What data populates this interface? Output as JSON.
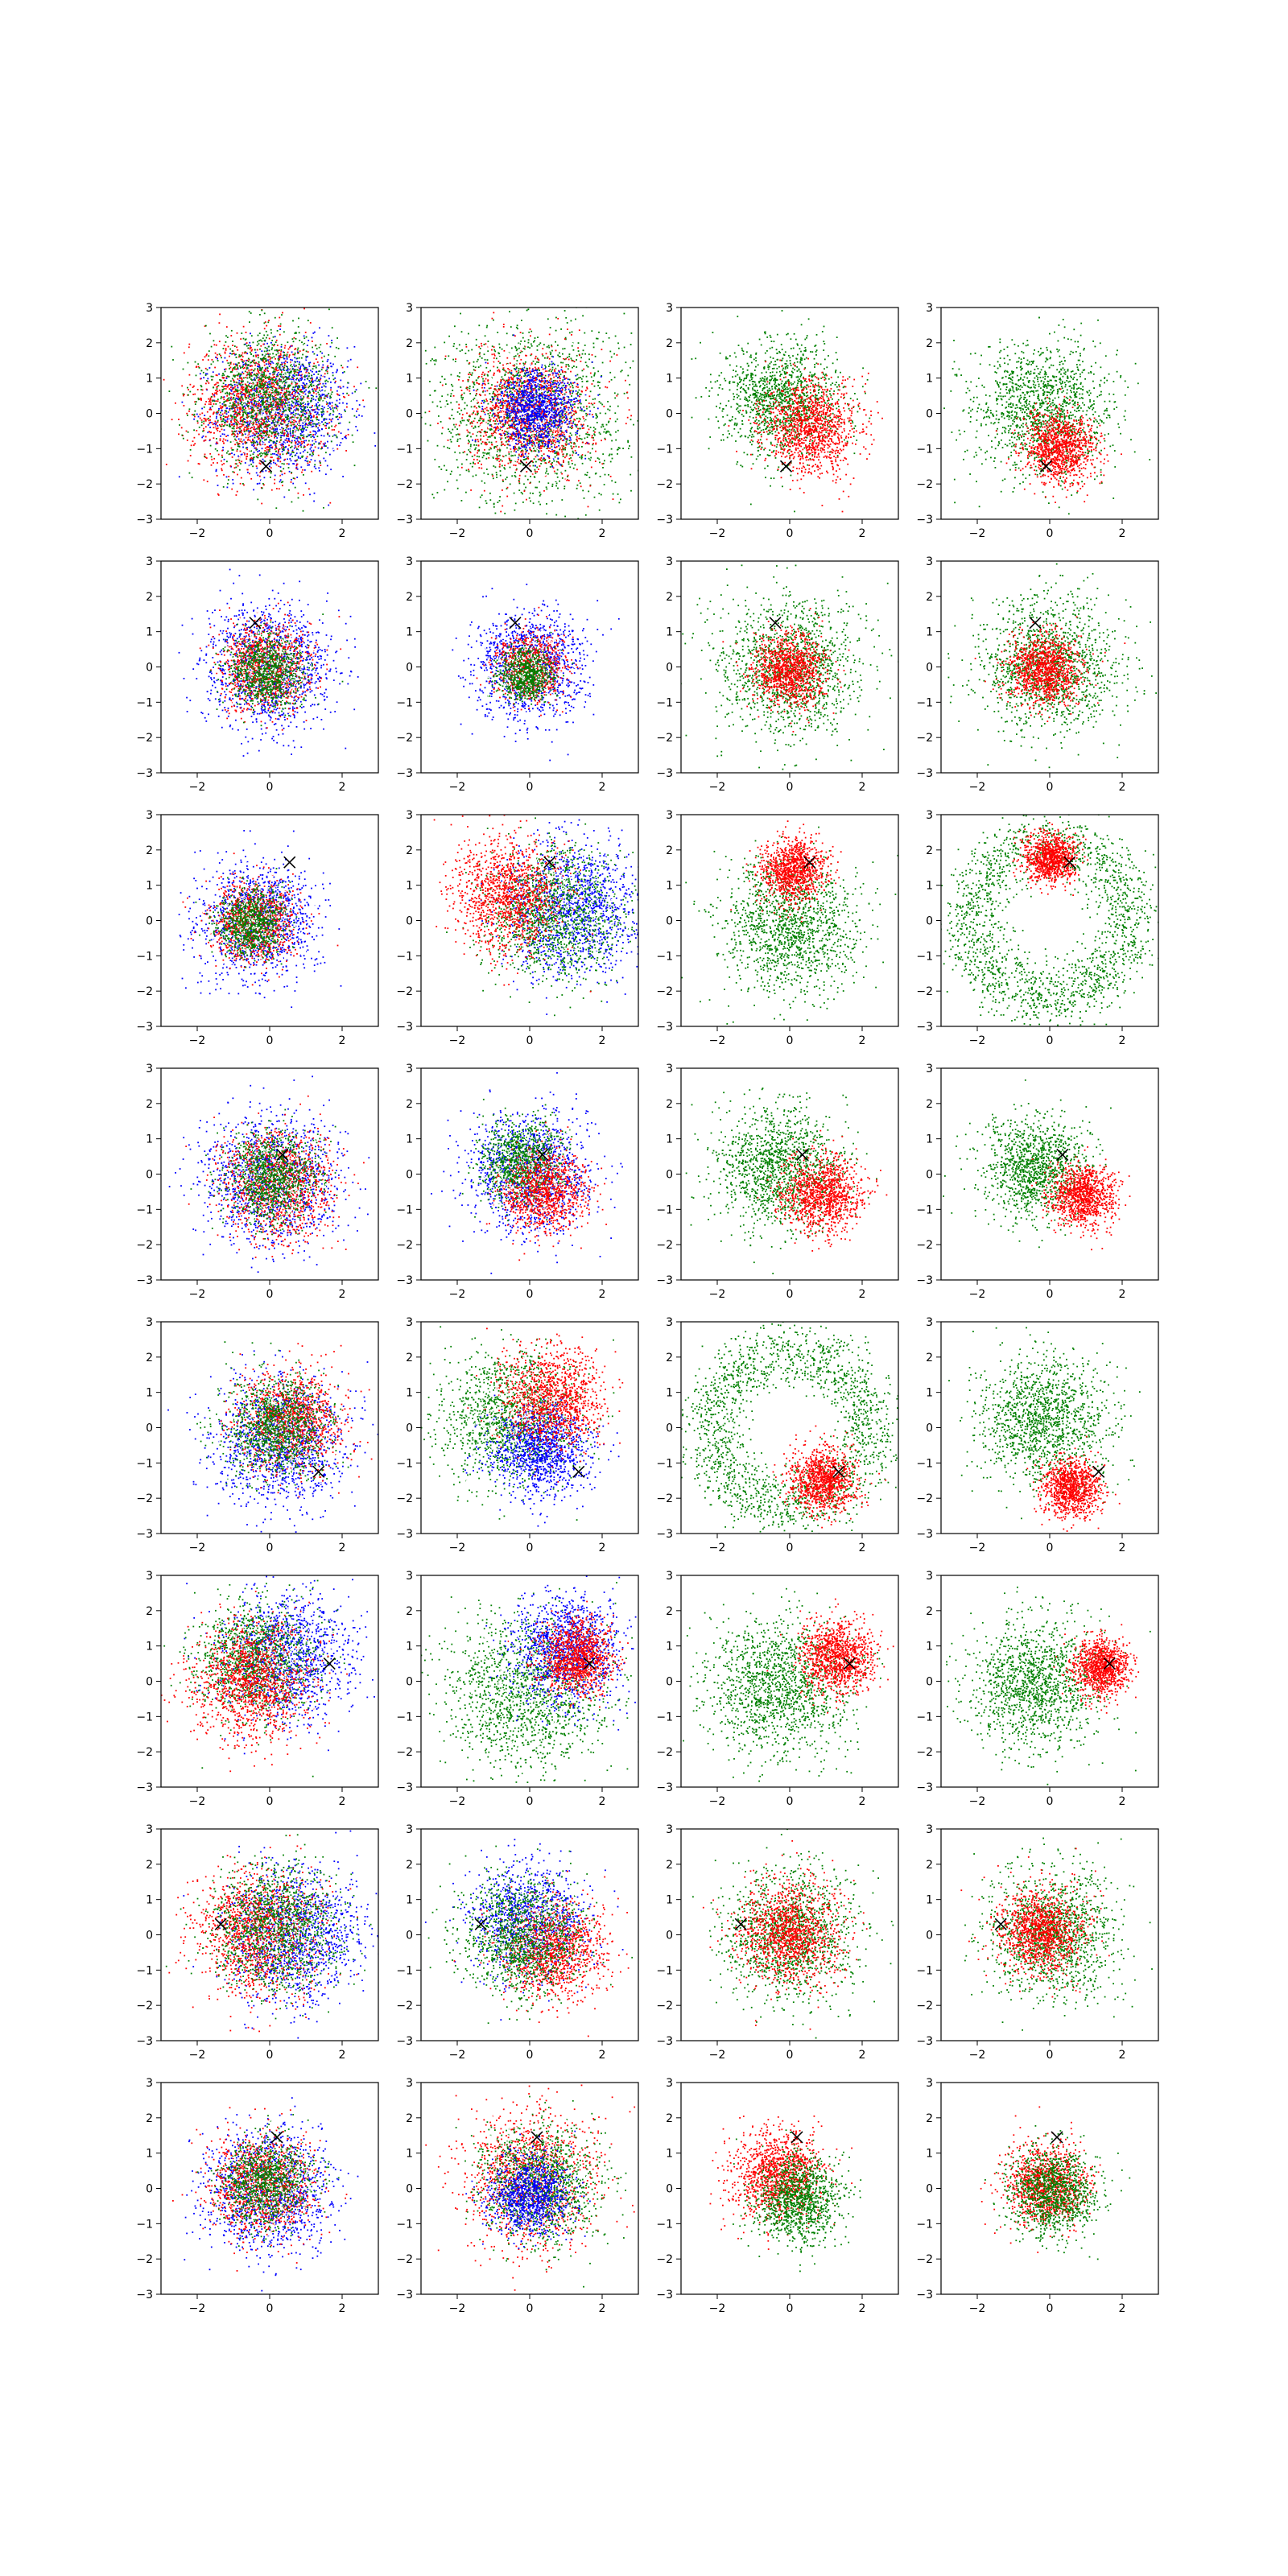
{
  "figure": {
    "rows": 8,
    "cols": 4
  },
  "chart_data": {
    "type": "scatter",
    "layout": "8x4 grid of scatter panels",
    "xlim": [
      -3,
      3
    ],
    "ylim": [
      -3,
      3
    ],
    "x_ticks": [
      -2,
      0,
      2
    ],
    "y_ticks": [
      -3,
      -2,
      -1,
      0,
      1,
      2,
      3
    ],
    "x_tick_labels": [
      "−2",
      "0",
      "2"
    ],
    "y_tick_labels": [
      "−3",
      "−2",
      "−1",
      "0",
      "1",
      "2",
      "3"
    ],
    "grid": false,
    "legend": "none",
    "series_colors": {
      "red": "#ff0000",
      "green": "#008000",
      "blue": "#0000ff",
      "white": "#ffffff",
      "marker": "#000000"
    },
    "marker": "x (black cross)",
    "rows": [
      {
        "marker": [
          -0.1,
          -1.5
        ],
        "panels": [
          {
            "clusters": [
              {
                "color": "blue",
                "cx": 0.4,
                "cy": 0.1,
                "s": 0.9
              },
              {
                "color": "red",
                "cx": -0.3,
                "cy": 0.2,
                "s": 0.95
              },
              {
                "color": "green",
                "cx": 0.0,
                "cy": 0.4,
                "s": 0.9
              }
            ],
            "mix": true
          },
          {
            "clusters": [
              {
                "color": "green",
                "cx": 0.0,
                "cy": 0.0,
                "s": 1.3
              },
              {
                "color": "red",
                "cx": 0.0,
                "cy": 0.0,
                "s": 0.85
              },
              {
                "color": "blue",
                "cx": 0.2,
                "cy": 0.1,
                "s": 0.55
              }
            ],
            "mix": true
          },
          {
            "clusters": [
              {
                "color": "green",
                "cx": -0.2,
                "cy": 0.4,
                "s": 0.8
              },
              {
                "color": "red",
                "cx": 0.6,
                "cy": -0.4,
                "s": 0.65
              }
            ]
          },
          {
            "clusters": [
              {
                "color": "green",
                "cx": -0.2,
                "cy": 0.1,
                "s": 0.95
              },
              {
                "color": "red",
                "cx": 0.3,
                "cy": -1.0,
                "s": 0.5
              }
            ]
          }
        ]
      },
      {
        "marker": [
          -0.4,
          1.25
        ],
        "panels": [
          {
            "clusters": [
              {
                "color": "blue",
                "cx": 0.0,
                "cy": 0.0,
                "s": 0.85
              },
              {
                "color": "red",
                "cx": -0.1,
                "cy": 0.0,
                "s": 0.6
              },
              {
                "color": "green",
                "cx": -0.1,
                "cy": -0.1,
                "s": 0.5
              }
            ],
            "mix": true
          },
          {
            "clusters": [
              {
                "color": "blue",
                "cx": 0.0,
                "cy": 0.0,
                "s": 0.75
              },
              {
                "color": "red",
                "cx": 0.0,
                "cy": 0.0,
                "s": 0.45
              },
              {
                "color": "green",
                "cx": -0.1,
                "cy": -0.2,
                "s": 0.35
              }
            ],
            "mix": true
          },
          {
            "clusters": [
              {
                "color": "green",
                "cx": 0.0,
                "cy": 0.0,
                "s": 0.95
              },
              {
                "color": "red",
                "cx": 0.0,
                "cy": -0.1,
                "s": 0.5
              }
            ]
          },
          {
            "clusters": [
              {
                "color": "green",
                "cx": 0.0,
                "cy": 0.0,
                "s": 0.95
              },
              {
                "color": "red",
                "cx": -0.1,
                "cy": -0.1,
                "s": 0.5
              }
            ]
          }
        ]
      },
      {
        "marker": [
          0.55,
          1.65
        ],
        "panels": [
          {
            "clusters": [
              {
                "color": "blue",
                "cx": -0.3,
                "cy": 0.0,
                "s": 0.8
              },
              {
                "color": "red",
                "cx": -0.4,
                "cy": 0.0,
                "s": 0.55
              },
              {
                "color": "green",
                "cx": -0.5,
                "cy": -0.1,
                "s": 0.45
              }
            ],
            "mix": true
          },
          {
            "clusters": [
              {
                "color": "blue",
                "cx": 1.2,
                "cy": 0.4,
                "s": 0.9
              },
              {
                "color": "green",
                "cx": 0.7,
                "cy": 0.2,
                "s": 0.9
              },
              {
                "color": "red",
                "cx": -0.6,
                "cy": 0.7,
                "s": 0.75
              }
            ],
            "mix": true
          },
          {
            "clusters": [
              {
                "color": "green",
                "cx": 0.0,
                "cy": -0.2,
                "s": 0.95
              },
              {
                "color": "red",
                "cx": 0.1,
                "cy": 1.4,
                "s": 0.45
              }
            ]
          },
          {
            "ring": {
              "color": "green",
              "r": 2.2,
              "w": 0.45
            },
            "clusters": [
              {
                "color": "red",
                "cx": 0.0,
                "cy": 1.75,
                "s": 0.35
              }
            ]
          }
        ]
      },
      {
        "marker": [
          0.35,
          0.55
        ],
        "panels": [
          {
            "clusters": [
              {
                "color": "blue",
                "cx": 0.1,
                "cy": -0.2,
                "s": 0.9
              },
              {
                "color": "red",
                "cx": 0.2,
                "cy": -0.3,
                "s": 0.75
              },
              {
                "color": "green",
                "cx": 0.1,
                "cy": -0.1,
                "s": 0.6
              }
            ],
            "mix": true
          },
          {
            "clusters": [
              {
                "color": "blue",
                "cx": 0.0,
                "cy": 0.0,
                "s": 0.85
              },
              {
                "color": "green",
                "cx": -0.2,
                "cy": 0.3,
                "s": 0.55
              },
              {
                "color": "red",
                "cx": 0.4,
                "cy": -0.5,
                "s": 0.55
              }
            ],
            "mix": true
          },
          {
            "clusters": [
              {
                "color": "green",
                "cx": -0.3,
                "cy": 0.2,
                "s": 0.85
              },
              {
                "color": "red",
                "cx": 0.9,
                "cy": -0.6,
                "s": 0.55
              }
            ]
          },
          {
            "clusters": [
              {
                "color": "green",
                "cx": -0.4,
                "cy": 0.2,
                "s": 0.7
              },
              {
                "color": "red",
                "cx": 0.9,
                "cy": -0.6,
                "s": 0.45
              }
            ]
          }
        ]
      },
      {
        "marker": [
          1.35,
          -1.25
        ],
        "panels": [
          {
            "clusters": [
              {
                "color": "blue",
                "cx": 0.3,
                "cy": -0.4,
                "s": 0.9
              },
              {
                "color": "red",
                "cx": 0.6,
                "cy": 0.2,
                "s": 0.7
              },
              {
                "color": "green",
                "cx": 0.2,
                "cy": 0.0,
                "s": 0.7
              }
            ],
            "mix": true
          },
          {
            "clusters": [
              {
                "color": "green",
                "cx": -0.6,
                "cy": 0.3,
                "s": 0.9
              },
              {
                "color": "blue",
                "cx": 0.3,
                "cy": -0.6,
                "s": 0.65
              },
              {
                "color": "red",
                "cx": 0.6,
                "cy": 0.8,
                "s": 0.7
              }
            ],
            "mix": true
          },
          {
            "ring": {
              "color": "green",
              "r": 2.2,
              "w": 0.45
            },
            "clusters": [
              {
                "color": "red",
                "cx": 0.9,
                "cy": -1.5,
                "s": 0.45
              }
            ]
          },
          {
            "clusters": [
              {
                "color": "green",
                "cx": -0.1,
                "cy": 0.2,
                "s": 0.9
              },
              {
                "color": "red",
                "cx": 0.6,
                "cy": -1.7,
                "s": 0.4
              }
            ]
          }
        ]
      },
      {
        "marker": [
          1.65,
          0.5
        ],
        "panels": [
          {
            "clusters": [
              {
                "color": "blue",
                "cx": 0.5,
                "cy": 0.7,
                "s": 0.85
              },
              {
                "color": "green",
                "cx": -0.4,
                "cy": 0.6,
                "s": 0.8
              },
              {
                "color": "red",
                "cx": -0.5,
                "cy": 0.0,
                "s": 0.8
              }
            ],
            "mix": true
          },
          {
            "clusters": [
              {
                "color": "green",
                "cx": -0.1,
                "cy": -0.3,
                "s": 1.1
              },
              {
                "color": "blue",
                "cx": 1.0,
                "cy": 0.9,
                "s": 0.75
              },
              {
                "color": "red",
                "cx": 1.3,
                "cy": 0.7,
                "s": 0.5
              }
            ],
            "mix": true
          },
          {
            "clusters": [
              {
                "color": "green",
                "cx": -0.3,
                "cy": -0.2,
                "s": 1.0
              },
              {
                "color": "red",
                "cx": 1.3,
                "cy": 0.7,
                "s": 0.5
              }
            ]
          },
          {
            "clusters": [
              {
                "color": "green",
                "cx": -0.4,
                "cy": -0.1,
                "s": 0.9
              },
              {
                "color": "red",
                "cx": 1.4,
                "cy": 0.4,
                "s": 0.4
              }
            ]
          }
        ]
      },
      {
        "marker": [
          -1.35,
          0.3
        ],
        "panels": [
          {
            "clusters": [
              {
                "color": "blue",
                "cx": 0.7,
                "cy": 0.0,
                "s": 0.9
              },
              {
                "color": "red",
                "cx": -0.3,
                "cy": 0.1,
                "s": 0.85
              },
              {
                "color": "green",
                "cx": 0.2,
                "cy": 0.2,
                "s": 0.85
              }
            ],
            "mix": true
          },
          {
            "clusters": [
              {
                "color": "blue",
                "cx": 0.0,
                "cy": 0.4,
                "s": 0.75
              },
              {
                "color": "red",
                "cx": 0.7,
                "cy": -0.4,
                "s": 0.7
              },
              {
                "color": "green",
                "cx": -0.2,
                "cy": 0.0,
                "s": 0.8
              }
            ],
            "mix": true
          },
          {
            "clusters": [
              {
                "color": "green",
                "cx": 0.0,
                "cy": 0.0,
                "s": 0.9
              },
              {
                "color": "red",
                "cx": 0.0,
                "cy": 0.1,
                "s": 0.7
              }
            ]
          },
          {
            "clusters": [
              {
                "color": "green",
                "cx": 0.1,
                "cy": 0.0,
                "s": 0.9
              },
              {
                "color": "red",
                "cx": -0.2,
                "cy": 0.1,
                "s": 0.6
              }
            ]
          }
        ]
      },
      {
        "marker": [
          0.2,
          1.45
        ],
        "panels": [
          {
            "clusters": [
              {
                "color": "blue",
                "cx": 0.0,
                "cy": -0.1,
                "s": 0.85
              },
              {
                "color": "red",
                "cx": -0.2,
                "cy": 0.1,
                "s": 0.7
              },
              {
                "color": "green",
                "cx": -0.1,
                "cy": 0.2,
                "s": 0.6
              }
            ],
            "mix": true
          },
          {
            "clusters": [
              {
                "color": "red",
                "cx": 0.0,
                "cy": 0.3,
                "s": 0.9
              },
              {
                "color": "green",
                "cx": 0.3,
                "cy": 0.1,
                "s": 0.8
              },
              {
                "color": "blue",
                "cx": 0.0,
                "cy": -0.2,
                "s": 0.55
              }
            ],
            "mix": true
          },
          {
            "clusters": [
              {
                "color": "red",
                "cx": -0.3,
                "cy": 0.4,
                "s": 0.65
              },
              {
                "color": "green",
                "cx": 0.2,
                "cy": -0.3,
                "s": 0.6
              }
            ]
          },
          {
            "clusters": [
              {
                "color": "red",
                "cx": -0.1,
                "cy": 0.1,
                "s": 0.55
              },
              {
                "color": "green",
                "cx": 0.1,
                "cy": -0.1,
                "s": 0.6
              }
            ]
          }
        ]
      }
    ]
  }
}
